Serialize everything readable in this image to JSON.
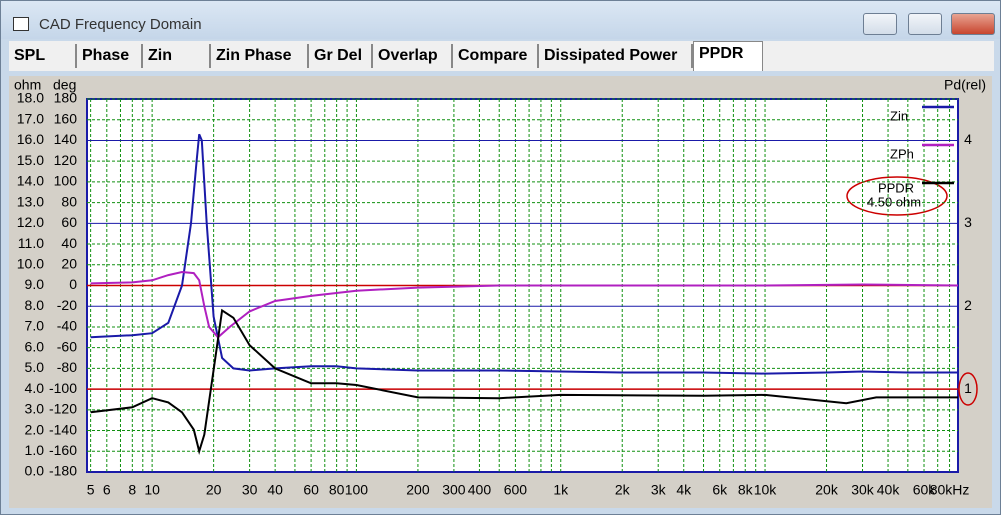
{
  "window": {
    "title": "CAD Frequency Domain",
    "tabs": [
      "SPL",
      "Phase",
      "Zin",
      "Zin Phase",
      "Gr Del",
      "Overlap",
      "Compare",
      "Dissipated Power",
      "PPDR"
    ],
    "selected_tab": 8
  },
  "chart_data": {
    "type": "line",
    "y_axis_label": "ohm",
    "y3_axis_label": "deg",
    "y2_axis_label": "Pd(rel)",
    "log_x": true,
    "grid": true,
    "xlim": [
      4.8,
      88000
    ],
    "xticks": [
      5,
      6,
      8,
      10,
      20,
      30,
      40,
      60,
      80,
      100,
      200,
      300,
      400,
      600,
      {
        "value": 1000,
        "label": "1k"
      },
      {
        "value": 2000,
        "label": "2k"
      },
      {
        "value": 3000,
        "label": "3k"
      },
      {
        "value": 4000,
        "label": "4k"
      },
      {
        "value": 6000,
        "label": "6k"
      },
      {
        "value": 8000,
        "label": "8k"
      },
      {
        "value": 10000,
        "label": "10k"
      },
      {
        "value": 20000,
        "label": "20k"
      },
      {
        "value": 30000,
        "label": "30k"
      },
      {
        "value": 40000,
        "label": "40k"
      },
      {
        "value": 60000,
        "label": "60k"
      },
      {
        "value": 80000,
        "label": "80kHz"
      }
    ],
    "xgrid_minor": [
      7,
      9,
      50,
      70,
      90,
      500,
      700,
      800,
      900,
      5000,
      7000,
      9000,
      50000,
      70000
    ],
    "ylim": [
      0,
      18
    ],
    "yticks": [
      {
        "value": 0,
        "label": "0.0"
      },
      {
        "value": 1,
        "label": "1.0"
      },
      {
        "value": 2,
        "label": "2.0"
      },
      {
        "value": 3,
        "label": "3.0"
      },
      {
        "value": 4,
        "label": "4.0"
      },
      {
        "value": 5,
        "label": "5.0"
      },
      {
        "value": 6,
        "label": "6.0"
      },
      {
        "value": 7,
        "label": "7.0"
      },
      {
        "value": 8,
        "label": "8.0"
      },
      {
        "value": 9,
        "label": "9.0"
      },
      {
        "value": 10,
        "label": "10.0"
      },
      {
        "value": 11,
        "label": "11.0"
      },
      {
        "value": 12,
        "label": "12.0"
      },
      {
        "value": 13,
        "label": "13.0"
      },
      {
        "value": 14,
        "label": "14.0"
      },
      {
        "value": 15,
        "label": "15.0"
      },
      {
        "value": 16,
        "label": "16.0"
      },
      {
        "value": 17,
        "label": "17.0"
      },
      {
        "value": 18,
        "label": "18.0"
      }
    ],
    "y3lim": [
      -180,
      180
    ],
    "y3ticks": [
      -180,
      -160,
      -140,
      -120,
      -100,
      -80,
      -60,
      -40,
      -20,
      0,
      20,
      40,
      60,
      80,
      100,
      120,
      140,
      160,
      180
    ],
    "y2lim": [
      0,
      4.5
    ],
    "y2ticks": [
      1,
      2,
      3,
      4
    ],
    "reference_lines": {
      "values": [
        9,
        4
      ],
      "color": "#cc0000"
    },
    "series": [
      {
        "name": "Zin",
        "color": "#1a1aa8",
        "axis": "y",
        "x": [
          5,
          8,
          10,
          12,
          14,
          15.5,
          16.5,
          17,
          17.5,
          18.5,
          20,
          22,
          25,
          30,
          40,
          60,
          80,
          100,
          200,
          500,
          1000,
          2000,
          5000,
          10000,
          20000,
          30000,
          50000,
          88000
        ],
        "values": [
          6.5,
          6.6,
          6.7,
          7.2,
          9,
          12,
          15,
          16.3,
          16,
          12,
          7.5,
          5.5,
          5.0,
          4.9,
          5.0,
          5.1,
          5.1,
          5.0,
          4.9,
          4.9,
          4.85,
          4.8,
          4.8,
          4.75,
          4.8,
          4.85,
          4.8,
          4.8
        ]
      },
      {
        "name": "ZPh",
        "color": "#b020c0",
        "axis": "y3",
        "x": [
          5,
          8,
          10,
          12,
          14,
          16,
          17,
          18,
          19,
          21,
          24,
          30,
          40,
          60,
          100,
          200,
          500,
          1000,
          10000,
          30000,
          88000
        ],
        "values": [
          2,
          3,
          5,
          10,
          13,
          12,
          5,
          -20,
          -40,
          -50,
          -40,
          -25,
          -15,
          -10,
          -5,
          -2,
          0,
          0,
          0,
          1,
          0
        ]
      },
      {
        "name": "PPDR",
        "color": "#000000",
        "axis": "y2",
        "x": [
          5,
          8,
          10,
          12,
          14,
          16,
          17,
          18,
          20,
          22,
          25,
          30,
          40,
          60,
          80,
          100,
          200,
          500,
          1000,
          5000,
          10000,
          25000,
          35000,
          88000
        ],
        "values": [
          0.72,
          0.78,
          0.89,
          0.84,
          0.72,
          0.51,
          0.25,
          0.45,
          1.23,
          1.95,
          1.86,
          1.53,
          1.25,
          1.07,
          1.07,
          1.05,
          0.9,
          0.89,
          0.93,
          0.92,
          0.93,
          0.83,
          0.9,
          0.9
        ],
        "annotation": "4.50 ohm"
      }
    ]
  }
}
